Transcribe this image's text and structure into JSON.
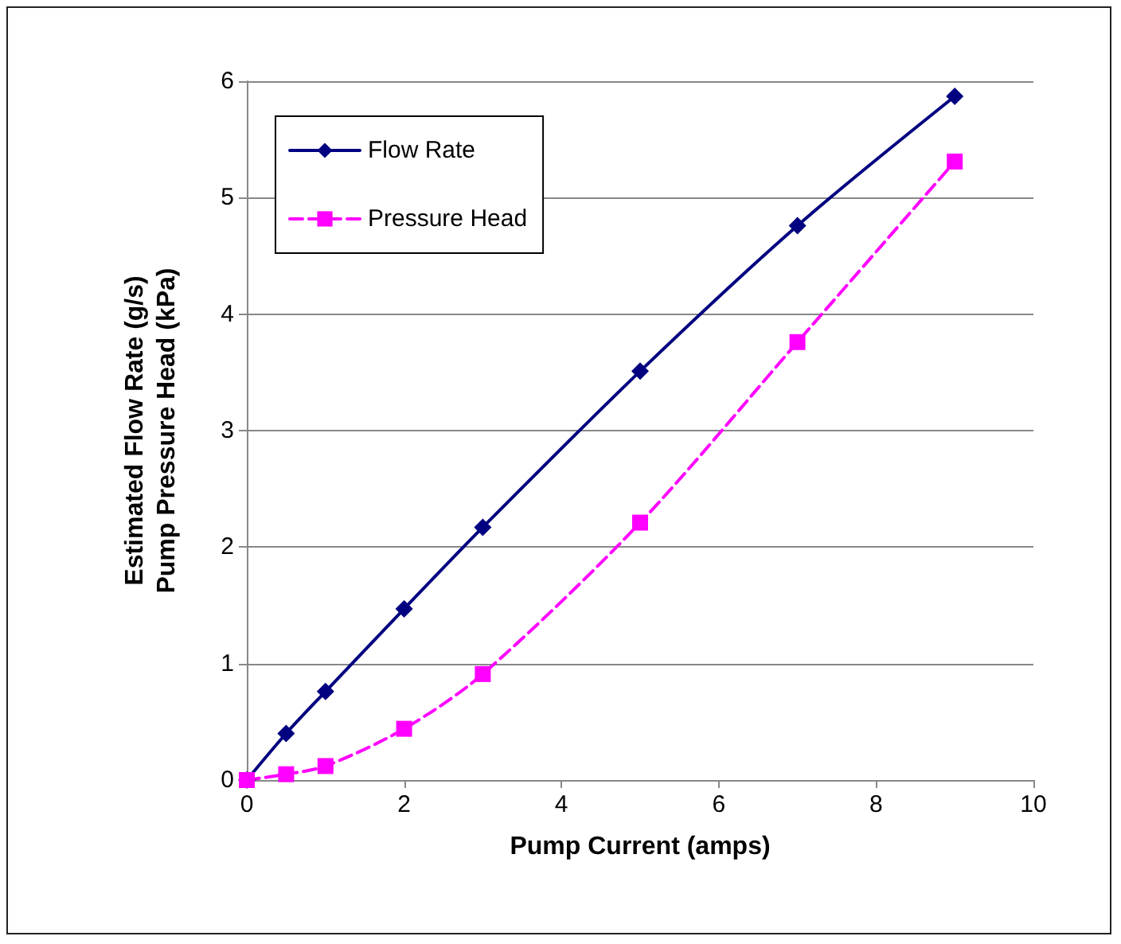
{
  "chart_data": {
    "type": "line",
    "xlabel": "Pump Current (amps)",
    "ylabel": "Estimated Flow Rate (g/s)\nPump Pressure Head (kPa)",
    "x": [
      0,
      0.5,
      1,
      2,
      3,
      5,
      7,
      9
    ],
    "series": [
      {
        "name": "Flow Rate",
        "color": "#000080",
        "marker": "diamond",
        "line_style": "solid",
        "values": [
          0,
          0.4,
          0.76,
          1.47,
          2.17,
          3.51,
          4.76,
          5.87
        ]
      },
      {
        "name": "Pressure Head",
        "color": "#ff00ff",
        "marker": "square",
        "line_style": "dashed",
        "values": [
          0,
          0.05,
          0.12,
          0.44,
          0.91,
          2.21,
          3.76,
          5.31
        ]
      }
    ],
    "xlim": [
      0,
      10
    ],
    "xticks": [
      0,
      2,
      4,
      6,
      8,
      10
    ],
    "ylim": [
      0,
      6
    ],
    "yticks": [
      0,
      1,
      2,
      3,
      4,
      5,
      6
    ],
    "grid": "y",
    "legend": "top left"
  }
}
